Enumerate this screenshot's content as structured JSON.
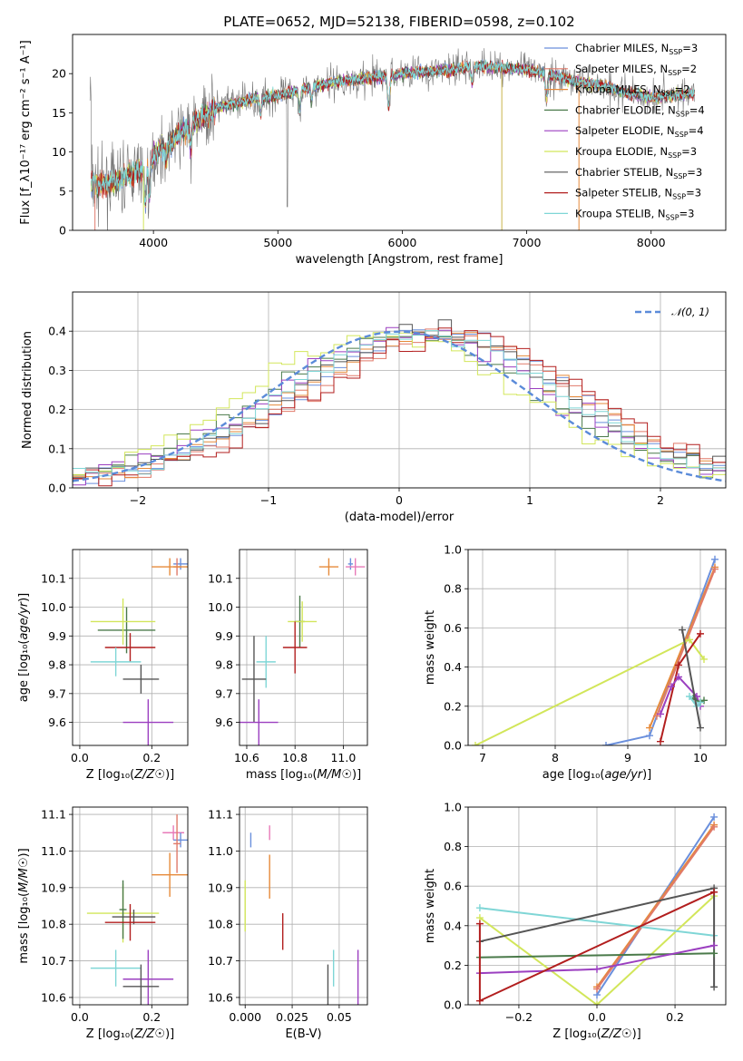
{
  "title": "PLATE=0652, MJD=52138, FIBERID=0598, z=0.102",
  "colors": {
    "Chabrier MILES": "#6a8fdc",
    "Salpeter MILES": "#e07a6a",
    "Kroupa MILES": "#e68a3a",
    "Chabrier ELODIE": "#4a7a4a",
    "Salpeter ELODIE": "#9b3fc0",
    "Kroupa ELODIE": "#d2e65a",
    "Chabrier STELIB": "#555555",
    "Salpeter STELIB": "#b21e1e",
    "Kroupa STELIB": "#7fd6d6",
    "pink": "#e87ab8"
  },
  "chart_data": [
    {
      "type": "line",
      "xlabel": "wavelength [Angstrom, rest frame]",
      "ylabel": "Flux [f_λ10⁻¹⁷ erg cm⁻² s⁻¹ A⁻¹]",
      "xlim": [
        3350,
        8600
      ],
      "ylim": [
        0,
        25
      ],
      "xticks": [
        4000,
        5000,
        6000,
        7000,
        8000
      ],
      "yticks": [
        0,
        5,
        10,
        15,
        20
      ],
      "legend_position": "top-right",
      "legend": [
        "Chabrier MILES, N_SSP=3",
        "Salpeter MILES, N_SSP=2",
        "Kroupa MILES, N_SSP=2",
        "Chabrier ELODIE, N_SSP=4",
        "Salpeter ELODIE, N_SSP=4",
        "Kroupa ELODIE, N_SSP=3",
        "Chabrier STELIB, N_SSP=3",
        "Salpeter STELIB, N_SSP=3",
        "Kroupa STELIB, N_SSP=3"
      ],
      "continuum": [
        [
          3500,
          6
        ],
        [
          3600,
          5.8
        ],
        [
          3700,
          6.2
        ],
        [
          3800,
          7
        ],
        [
          3900,
          7.8
        ],
        [
          4000,
          9.5
        ],
        [
          4100,
          11
        ],
        [
          4200,
          12
        ],
        [
          4300,
          13.5
        ],
        [
          4400,
          14.5
        ],
        [
          4500,
          15.5
        ],
        [
          4600,
          16
        ],
        [
          4800,
          16.8
        ],
        [
          5000,
          17.2
        ],
        [
          5200,
          18
        ],
        [
          5400,
          18.8
        ],
        [
          5600,
          19.2
        ],
        [
          5800,
          19.5
        ],
        [
          6000,
          20
        ],
        [
          6200,
          20.3
        ],
        [
          6400,
          20.5
        ],
        [
          6600,
          21
        ],
        [
          6800,
          20.8
        ],
        [
          7000,
          20.5
        ],
        [
          7200,
          19.8
        ],
        [
          7400,
          19
        ],
        [
          7600,
          18.5
        ],
        [
          7800,
          17.6
        ],
        [
          8000,
          17
        ],
        [
          8200,
          17.3
        ],
        [
          8350,
          17.5
        ]
      ]
    },
    {
      "type": "line",
      "xlabel": "(data-model)/error",
      "ylabel": "Normed distribution",
      "xlim": [
        -2.5,
        2.5
      ],
      "ylim": [
        0,
        0.5
      ],
      "xticks": [
        -2,
        -1,
        0,
        1,
        2
      ],
      "yticks": [
        0.0,
        0.1,
        0.2,
        0.3,
        0.4
      ],
      "grid": true,
      "legend_position": "top-right",
      "legend": [
        "𝒩(0, 1)"
      ]
    },
    {
      "type": "scatter",
      "xlabel": "Z [log₁₀(Z/Z☉)]",
      "ylabel": "age  [log₁₀(age/yr)]",
      "xlim": [
        -0.02,
        0.3
      ],
      "ylim": [
        9.52,
        10.2
      ],
      "xticks": [
        0.0,
        0.2
      ],
      "yticks": [
        9.6,
        9.7,
        9.8,
        9.9,
        10.0,
        10.1
      ],
      "points": [
        {
          "c": "Chabrier MILES",
          "x": 0.28,
          "y": 10.15,
          "ex": 0.02,
          "ey": 0.02
        },
        {
          "c": "Salpeter MILES",
          "x": 0.27,
          "y": 10.14,
          "ex": 0.01,
          "ey": 0.03
        },
        {
          "c": "Kroupa MILES",
          "x": 0.25,
          "y": 10.14,
          "ex": 0.05,
          "ey": 0.03
        },
        {
          "c": "Chabrier ELODIE",
          "x": 0.13,
          "y": 9.92,
          "ex": 0.08,
          "ey": 0.08
        },
        {
          "c": "Salpeter ELODIE",
          "x": 0.19,
          "y": 9.6,
          "ex": 0.07,
          "ey": 0.08
        },
        {
          "c": "Kroupa ELODIE",
          "x": 0.12,
          "y": 9.95,
          "ex": 0.09,
          "ey": 0.08
        },
        {
          "c": "Chabrier STELIB",
          "x": 0.17,
          "y": 9.75,
          "ex": 0.05,
          "ey": 0.05
        },
        {
          "c": "Salpeter STELIB",
          "x": 0.14,
          "y": 9.86,
          "ex": 0.07,
          "ey": 0.05
        },
        {
          "c": "Kroupa STELIB",
          "x": 0.1,
          "y": 9.81,
          "ex": 0.07,
          "ey": 0.05
        }
      ]
    },
    {
      "type": "scatter",
      "xlabel": "mass [log₁₀(M/M☉)]",
      "ylabel": "",
      "xlim": [
        10.57,
        11.1
      ],
      "ylim": [
        9.52,
        10.2
      ],
      "xticks": [
        10.6,
        10.8,
        11.0
      ],
      "yticks": [
        9.6,
        9.7,
        9.8,
        9.9,
        10.0,
        10.1
      ],
      "points": [
        {
          "c": "Chabrier MILES",
          "x": 11.03,
          "y": 10.15,
          "ex": 0.01,
          "ey": 0.02
        },
        {
          "c": "pink",
          "x": 11.05,
          "y": 10.14,
          "ex": 0.04,
          "ey": 0.03
        },
        {
          "c": "Kroupa MILES",
          "x": 10.94,
          "y": 10.14,
          "ex": 0.04,
          "ey": 0.03
        },
        {
          "c": "Chabrier ELODIE",
          "x": 10.82,
          "y": 9.95,
          "ex": 0.02,
          "ey": 0.09
        },
        {
          "c": "Kroupa ELODIE",
          "x": 10.83,
          "y": 9.95,
          "ex": 0.06,
          "ey": 0.07
        },
        {
          "c": "Kroupa STELIB",
          "x": 10.68,
          "y": 9.81,
          "ex": 0.04,
          "ey": 0.09
        },
        {
          "c": "Salpeter STELIB",
          "x": 10.8,
          "y": 9.86,
          "ex": 0.05,
          "ey": 0.09
        },
        {
          "c": "Chabrier STELIB",
          "x": 10.63,
          "y": 9.75,
          "ex": 0.05,
          "ey": 0.15
        },
        {
          "c": "Salpeter ELODIE",
          "x": 10.65,
          "y": 9.6,
          "ex": 0.08,
          "ey": 0.08
        }
      ]
    },
    {
      "type": "line",
      "xlabel": "age  [log₁₀(age/yr)]",
      "ylabel": "mass weight",
      "xlim": [
        6.8,
        10.35
      ],
      "ylim": [
        0,
        1.0
      ],
      "xticks": [
        7,
        8,
        9,
        10
      ],
      "yticks": [
        0.0,
        0.2,
        0.4,
        0.6,
        0.8,
        1.0
      ],
      "grid": true,
      "series": [
        {
          "c": "Chabrier MILES",
          "pts": [
            [
              8.7,
              0.0
            ],
            [
              9.3,
              0.05
            ],
            [
              10.2,
              0.95
            ]
          ]
        },
        {
          "c": "Kroupa MILES",
          "pts": [
            [
              9.3,
              0.09
            ],
            [
              10.2,
              0.91
            ]
          ]
        },
        {
          "c": "Salpeter MILES",
          "pts": [
            [
              9.4,
              0.15
            ],
            [
              10.2,
              0.9
            ]
          ]
        },
        {
          "c": "Kroupa ELODIE",
          "pts": [
            [
              6.9,
              0.0
            ],
            [
              9.85,
              0.54
            ],
            [
              10.05,
              0.44
            ]
          ]
        },
        {
          "c": "Salpeter STELIB",
          "pts": [
            [
              9.45,
              0.02
            ],
            [
              9.7,
              0.41
            ],
            [
              10.0,
              0.57
            ]
          ]
        },
        {
          "c": "Salpeter ELODIE",
          "pts": [
            [
              9.45,
              0.16
            ],
            [
              9.6,
              0.3
            ],
            [
              9.7,
              0.35
            ],
            [
              9.95,
              0.25
            ],
            [
              10.0,
              0.2
            ]
          ]
        },
        {
          "c": "Chabrier ELODIE",
          "pts": [
            [
              9.9,
              0.24
            ],
            [
              10.0,
              0.22
            ],
            [
              10.05,
              0.23
            ]
          ]
        },
        {
          "c": "Kroupa STELIB",
          "pts": [
            [
              9.85,
              0.25
            ],
            [
              9.95,
              0.2
            ],
            [
              10.0,
              0.22
            ]
          ]
        },
        {
          "c": "Chabrier STELIB",
          "pts": [
            [
              9.75,
              0.59
            ],
            [
              10.0,
              0.09
            ]
          ]
        }
      ]
    },
    {
      "type": "scatter",
      "xlabel": "Z [log₁₀(Z/Z☉)]",
      "ylabel": "mass [log₁₀(M/M☉)]",
      "xlim": [
        -0.02,
        0.3
      ],
      "ylim": [
        10.58,
        11.12
      ],
      "xticks": [
        0.0,
        0.2
      ],
      "yticks": [
        10.6,
        10.7,
        10.8,
        10.9,
        11.0,
        11.1
      ],
      "points": [
        {
          "c": "pink",
          "x": 0.26,
          "y": 11.05,
          "ex": 0.03,
          "ey": 0.02
        },
        {
          "c": "Chabrier MILES",
          "x": 0.28,
          "y": 11.03,
          "ex": 0.02,
          "ey": 0.02
        },
        {
          "c": "Salpeter MILES",
          "x": 0.27,
          "y": 11.02,
          "ex": 0.01,
          "ey": 0.08
        },
        {
          "c": "Kroupa MILES",
          "x": 0.25,
          "y": 10.935,
          "ex": 0.05,
          "ey": 0.06
        },
        {
          "c": "Kroupa ELODIE",
          "x": 0.12,
          "y": 10.83,
          "ex": 0.1,
          "ey": 0.08
        },
        {
          "c": "Chabrier ELODIE",
          "x": 0.12,
          "y": 10.84,
          "ex": 0.01,
          "ey": 0.08
        },
        {
          "c": "Chabrier STELIB",
          "x": 0.15,
          "y": 10.82,
          "ex": 0.06,
          "ey": 0.02
        },
        {
          "c": "Salpeter STELIB",
          "x": 0.14,
          "y": 10.805,
          "ex": 0.07,
          "ey": 0.05
        },
        {
          "c": "Kroupa STELIB",
          "x": 0.1,
          "y": 10.68,
          "ex": 0.07,
          "ey": 0.05
        },
        {
          "c": "Salpeter ELODIE",
          "x": 0.19,
          "y": 10.65,
          "ex": 0.07,
          "ey": 0.08
        },
        {
          "c": "Chabrier STELIB",
          "x": 0.17,
          "y": 10.63,
          "ex": 0.05,
          "ey": 0.06
        }
      ]
    },
    {
      "type": "scatter",
      "xlabel": "E(B-V)",
      "ylabel": "",
      "xlim": [
        -0.003,
        0.065
      ],
      "ylim": [
        10.58,
        11.12
      ],
      "xticks": [
        0.0,
        0.025,
        0.05
      ],
      "yticks": [
        10.6,
        10.7,
        10.8,
        10.9,
        11.0,
        11.1
      ],
      "points": [
        {
          "c": "Kroupa ELODIE",
          "x": 0.0,
          "y": 10.85,
          "ex": 0.0,
          "ey": 0.07
        },
        {
          "c": "Chabrier MILES",
          "x": 0.003,
          "y": 11.03,
          "ex": 0.0,
          "ey": 0.02
        },
        {
          "c": "pink",
          "x": 0.013,
          "y": 11.05,
          "ex": 0.0,
          "ey": 0.02
        },
        {
          "c": "Kroupa MILES",
          "x": 0.013,
          "y": 10.93,
          "ex": 0.0,
          "ey": 0.06
        },
        {
          "c": "Salpeter STELIB",
          "x": 0.02,
          "y": 10.78,
          "ex": 0.0,
          "ey": 0.05
        },
        {
          "c": "Chabrier STELIB",
          "x": 0.044,
          "y": 10.63,
          "ex": 0.0,
          "ey": 0.06
        },
        {
          "c": "Kroupa STELIB",
          "x": 0.047,
          "y": 10.68,
          "ex": 0.0,
          "ey": 0.05
        },
        {
          "c": "Salpeter ELODIE",
          "x": 0.06,
          "y": 10.65,
          "ex": 0.0,
          "ey": 0.08
        }
      ]
    },
    {
      "type": "line",
      "xlabel": "Z [log₁₀(Z/Z☉)]",
      "ylabel": "mass weight",
      "xlim": [
        -0.33,
        0.33
      ],
      "ylim": [
        0,
        1.0
      ],
      "xticks": [
        -0.2,
        0.0,
        0.2
      ],
      "yticks": [
        0.0,
        0.2,
        0.4,
        0.6,
        0.8,
        1.0
      ],
      "grid": true,
      "series": [
        {
          "c": "Chabrier MILES",
          "pts": [
            [
              0.0,
              0.05
            ],
            [
              0.3,
              0.95
            ]
          ]
        },
        {
          "c": "Kroupa MILES",
          "pts": [
            [
              0.0,
              0.09
            ],
            [
              0.3,
              0.91
            ]
          ]
        },
        {
          "c": "Salpeter MILES",
          "pts": [
            [
              0.0,
              0.08
            ],
            [
              0.3,
              0.9
            ]
          ]
        },
        {
          "c": "Kroupa ELODIE",
          "pts": [
            [
              -0.3,
              0.44
            ],
            [
              0.0,
              0.0
            ],
            [
              0.3,
              0.55
            ]
          ]
        },
        {
          "c": "Kroupa STELIB",
          "pts": [
            [
              -0.3,
              0.49
            ],
            [
              0.3,
              0.35
            ]
          ]
        },
        {
          "c": "Chabrier STELIB",
          "pts": [
            [
              -0.3,
              0.32
            ],
            [
              0.3,
              0.59
            ],
            [
              0.3,
              0.09
            ]
          ]
        },
        {
          "c": "Chabrier ELODIE",
          "pts": [
            [
              -0.3,
              0.24
            ],
            [
              0.3,
              0.26
            ]
          ]
        },
        {
          "c": "Salpeter ELODIE",
          "pts": [
            [
              -0.3,
              0.16
            ],
            [
              0.0,
              0.18
            ],
            [
              0.3,
              0.3
            ]
          ]
        },
        {
          "c": "Salpeter STELIB",
          "pts": [
            [
              -0.3,
              0.41
            ],
            [
              -0.3,
              0.02
            ],
            [
              0.3,
              0.57
            ]
          ]
        }
      ]
    }
  ]
}
